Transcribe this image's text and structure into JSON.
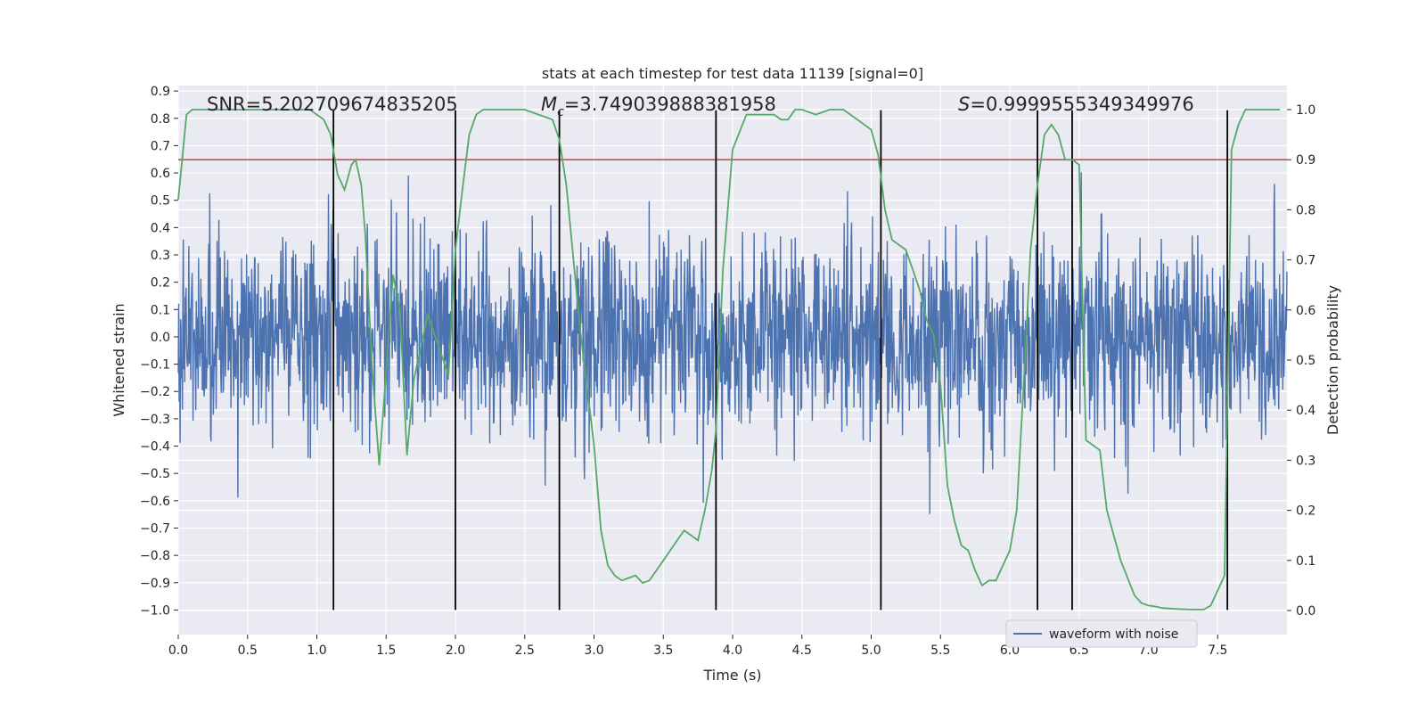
{
  "chart_data": {
    "type": "line",
    "title": "stats at each timestep for test data 11139 [signal=0]",
    "xlabel": "Time (s)",
    "ylabel": "Whitened strain",
    "y2label": "Detection probability",
    "xlim": [
      0,
      8
    ],
    "ylim": [
      -1.09,
      0.92
    ],
    "y2lim": [
      -0.048,
      1.048
    ],
    "x_ticks": [
      "0.0",
      "0.5",
      "1.0",
      "1.5",
      "2.0",
      "2.5",
      "3.0",
      "3.5",
      "4.0",
      "4.5",
      "5.0",
      "5.5",
      "6.0",
      "6.5",
      "7.0",
      "7.5"
    ],
    "y_ticks": [
      "0.9",
      "0.8",
      "0.7",
      "0.6",
      "0.5",
      "0.4",
      "0.3",
      "0.2",
      "0.1",
      "0.0",
      "−0.1",
      "−0.2",
      "−0.3",
      "−0.4",
      "−0.5",
      "−0.6",
      "−0.7",
      "−0.8",
      "−0.9",
      "−1.0"
    ],
    "y2_ticks": [
      "1.0",
      "0.9",
      "0.8",
      "0.7",
      "0.6",
      "0.5",
      "0.4",
      "0.3",
      "0.2",
      "0.1",
      "0.0"
    ],
    "grid": true,
    "legend": {
      "label": "waveform with noise",
      "placement": "lower-right"
    },
    "annotations": {
      "snr": "SNR=5.202709674835205",
      "mc_symbol": "M",
      "mc_subscript": "c",
      "mc_value": "=3.749039888381958",
      "s_symbol": "S",
      "s_value": "=0.9999555349349976"
    },
    "threshold": {
      "value": 0.9,
      "axis": "right"
    },
    "vertical_markers": [
      1.12,
      2.0,
      2.75,
      3.88,
      5.07,
      6.2,
      6.45,
      7.57
    ],
    "marker_range": [
      -1.0,
      0.83
    ],
    "waveform": {
      "name": "waveform with noise",
      "sigma": 0.175,
      "seed": 11139,
      "n_samples": 2400
    },
    "series": [
      {
        "name": "Detection probability",
        "axis": "right",
        "x": [
          0.0,
          0.06,
          0.1,
          0.2,
          0.4,
          0.6,
          0.8,
          0.95,
          1.0,
          1.05,
          1.1,
          1.15,
          1.2,
          1.25,
          1.28,
          1.32,
          1.35,
          1.4,
          1.45,
          1.48,
          1.55,
          1.6,
          1.65,
          1.7,
          1.8,
          1.85,
          1.95,
          2.0,
          2.05,
          2.1,
          2.15,
          2.2,
          2.35,
          2.5,
          2.6,
          2.7,
          2.75,
          2.8,
          2.9,
          3.0,
          3.05,
          3.1,
          3.15,
          3.2,
          3.25,
          3.3,
          3.35,
          3.4,
          3.5,
          3.55,
          3.6,
          3.65,
          3.7,
          3.75,
          3.8,
          3.85,
          3.88,
          3.93,
          4.0,
          4.1,
          4.2,
          4.3,
          4.35,
          4.4,
          4.45,
          4.5,
          4.6,
          4.7,
          4.8,
          4.85,
          4.9,
          5.0,
          5.05,
          5.1,
          5.15,
          5.2,
          5.25,
          5.3,
          5.35,
          5.4,
          5.45,
          5.5,
          5.55,
          5.6,
          5.65,
          5.7,
          5.75,
          5.8,
          5.85,
          5.9,
          6.0,
          6.05,
          6.1,
          6.15,
          6.2,
          6.25,
          6.3,
          6.35,
          6.4,
          6.45,
          6.5,
          6.55,
          6.6,
          6.65,
          6.7,
          6.8,
          6.9,
          6.95,
          7.0,
          7.05,
          7.1,
          7.2,
          7.3,
          7.4,
          7.45,
          7.5,
          7.55,
          7.6,
          7.65,
          7.7,
          7.8,
          7.95
        ],
        "values": [
          0.82,
          0.99,
          1.0,
          1.0,
          1.0,
          1.0,
          1.0,
          1.0,
          0.99,
          0.98,
          0.95,
          0.87,
          0.84,
          0.89,
          0.9,
          0.85,
          0.75,
          0.48,
          0.29,
          0.4,
          0.67,
          0.6,
          0.31,
          0.46,
          0.59,
          0.55,
          0.47,
          0.72,
          0.84,
          0.95,
          0.99,
          1.0,
          1.0,
          1.0,
          0.99,
          0.98,
          0.94,
          0.85,
          0.56,
          0.33,
          0.16,
          0.09,
          0.07,
          0.06,
          0.065,
          0.07,
          0.055,
          0.06,
          0.1,
          0.12,
          0.14,
          0.16,
          0.15,
          0.14,
          0.2,
          0.28,
          0.36,
          0.68,
          0.92,
          0.99,
          0.99,
          0.99,
          0.98,
          0.98,
          1.0,
          1.0,
          0.99,
          1.0,
          1.0,
          0.99,
          0.98,
          0.96,
          0.91,
          0.8,
          0.74,
          0.73,
          0.72,
          0.68,
          0.64,
          0.58,
          0.55,
          0.45,
          0.25,
          0.18,
          0.13,
          0.12,
          0.08,
          0.05,
          0.06,
          0.06,
          0.12,
          0.2,
          0.45,
          0.72,
          0.85,
          0.95,
          0.97,
          0.95,
          0.9,
          0.9,
          0.89,
          0.34,
          0.33,
          0.32,
          0.2,
          0.1,
          0.03,
          0.015,
          0.01,
          0.008,
          0.005,
          0.003,
          0.002,
          0.002,
          0.01,
          0.04,
          0.07,
          0.92,
          0.97,
          1.0,
          1.0,
          1.0
        ]
      }
    ]
  }
}
